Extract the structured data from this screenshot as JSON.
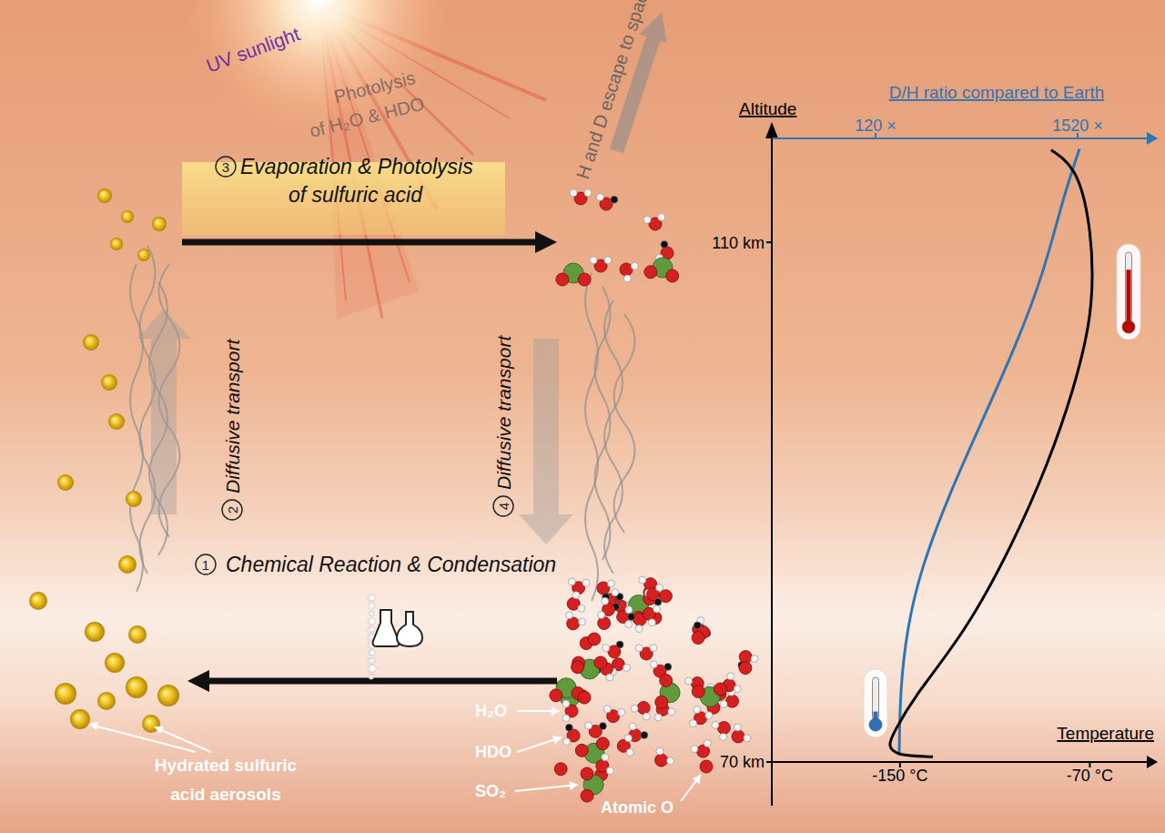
{
  "diagram": {
    "uv_label": "UV sunlight",
    "photolysis_label": [
      "Photolysis",
      "of H₂O & HDO"
    ],
    "escape_label": "H and D escape to space",
    "steps": [
      {
        "number": 1,
        "label": [
          "Chemical Reaction & Condensation"
        ]
      },
      {
        "number": 2,
        "label": [
          "Diffusive transport"
        ]
      },
      {
        "number": 3,
        "label": [
          "Evaporation & Photolysis",
          "of sulfuric acid"
        ]
      },
      {
        "number": 4,
        "label": [
          "Diffusive transport"
        ]
      }
    ],
    "species_labels": [
      "H₂O",
      "HDO",
      "SO₂",
      "Atomic O"
    ],
    "aerosol_label": [
      "Hydrated sulfuric",
      "acid aerosols"
    ]
  },
  "chart_data": {
    "type": "line",
    "y_label": "Altitude",
    "ylim": [
      70,
      118
    ],
    "yticks": [
      {
        "value": 70,
        "label": "70 km"
      },
      {
        "value": 110,
        "label": "110 km"
      }
    ],
    "x_label": "Temperature",
    "xlim": [
      -204,
      -46
    ],
    "xticks": [
      {
        "value": -150,
        "label": "-150 °C"
      },
      {
        "value": -70,
        "label": "-70 °C"
      }
    ],
    "x2_label": "D/H ratio compared to Earth",
    "x2lim": [
      -600,
      2000
    ],
    "x2ticks": [
      {
        "value": 120,
        "label": "120 ×"
      },
      {
        "value": 1520,
        "label": "1520 ×"
      }
    ],
    "series": [
      {
        "axis": "x2",
        "color": "#2e75b6",
        "x": [
          283,
          296,
          346,
          454,
          643,
          864,
          1085,
          1274,
          1419,
          1533
        ],
        "y": [
          70.5,
          75.4,
          80.3,
          85.2,
          90.8,
          96.4,
          102.0,
          107.6,
          113.2,
          117.2
        ]
      },
      {
        "color": "#000000",
        "x": [
          -86.3,
          -76.7,
          -70.9,
          -69.0,
          -70.9,
          -77.5,
          -88.2,
          -103.5,
          -122.7,
          -141.9,
          -151.5,
          -154.2,
          -149.6,
          -136.1
        ],
        "y": [
          117.1,
          115.4,
          111.9,
          107.6,
          103.4,
          98.5,
          92.9,
          86.6,
          80.3,
          75.4,
          72.6,
          71.3,
          70.6,
          70.4
        ]
      }
    ]
  }
}
